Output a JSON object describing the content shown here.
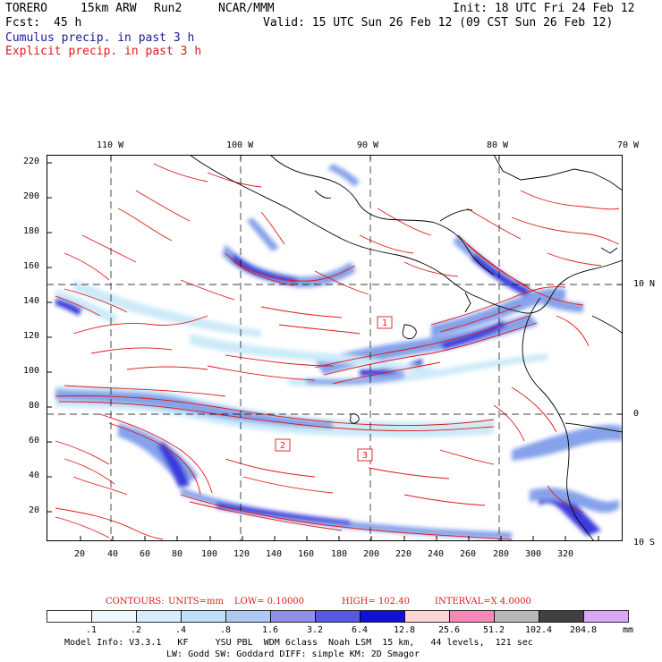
{
  "header": {
    "model": "TORERO",
    "resolution": "15km ARW",
    "run": "Run2",
    "org": "NCAR/MMM",
    "init": "Init: 18 UTC Fri 24 Feb 12",
    "fcst_label": "Fcst:",
    "fcst_value": "45 h",
    "valid": "Valid: 15 UTC Sun 26 Feb 12 (09 CST Sun 26 Feb 12)",
    "cumulus": "Cumulus precip. in past 3 h",
    "explicit": "Explicit precip. in past 3 h"
  },
  "map": {
    "top_labels": [
      "110 W",
      "100 W",
      "90 W",
      "80 W",
      "70 W"
    ],
    "right_labels": [
      "10 N",
      "0",
      "10 S"
    ],
    "y_ticks": [
      "220",
      "200",
      "180",
      "160",
      "140",
      "120",
      "100",
      "80",
      "60",
      "40",
      "20"
    ],
    "x_ticks": [
      "20",
      "40",
      "60",
      "80",
      "100",
      "120",
      "140",
      "160",
      "180",
      "200",
      "220",
      "240",
      "260",
      "280",
      "300",
      "320"
    ],
    "boxes": [
      "1",
      "2",
      "3"
    ],
    "colors": {
      "explicit_contour": "#e01818",
      "coast": "#000000",
      "grid": "#000000",
      "cumulus_light": "#c8e8f8",
      "cumulus_mid": "#7898e8",
      "cumulus_dark": "#2828d8"
    }
  },
  "contours": {
    "label": "CONTOURS:",
    "units": "UNITS=mm",
    "low": "LOW= 0.10000",
    "high": "HIGH= 102.40",
    "interval": "INTERVAL=X 4.0000"
  },
  "colorbar": {
    "unit": "mm",
    "labels": [
      ".1",
      ".2",
      ".4",
      ".8",
      "1.6",
      "3.2",
      "6.4",
      "12.8",
      "25.6",
      "51.2",
      "102.4",
      "204.8"
    ],
    "colors": [
      "#ffffff",
      "#f0f8ff",
      "#d8ecfc",
      "#c0e0f8",
      "#b0c8f0",
      "#9090e8",
      "#5858e0",
      "#1010d8",
      "#fcd4d4",
      "#f888b8",
      "#b8b8b8",
      "#404040",
      "#d8a8f8"
    ]
  },
  "footer": {
    "line1": "Model Info: V3.3.1   KF     YSU PBL  WDM 6class  Noah LSM  15 km,   44 levels,  121 sec",
    "line2": "LW: Godd SW: Goddard DIFF: simple KM: 2D Smagor"
  }
}
